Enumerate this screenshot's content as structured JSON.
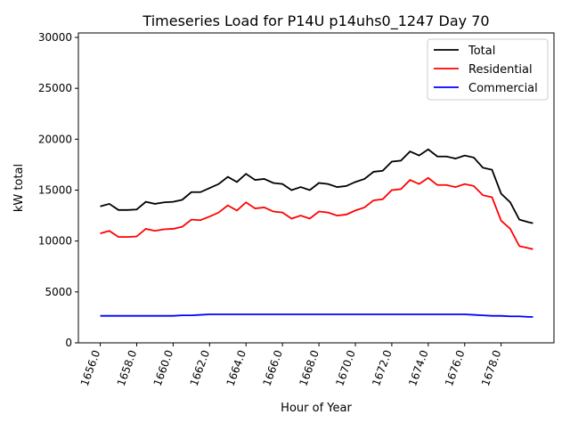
{
  "chart_data": {
    "type": "line",
    "title": "Timeseries Load for P14U p14uhs0_1247  Day 70",
    "xlabel": "Hour of Year",
    "ylabel": "kW total",
    "xlim": [
      1654.8,
      1680.9
    ],
    "ylim": [
      0,
      30000
    ],
    "xticks": [
      1656,
      1658,
      1660,
      1662,
      1664,
      1666,
      1668,
      1670,
      1672,
      1674,
      1676,
      1678
    ],
    "xtick_labels": [
      "1656.0",
      "1658.0",
      "1660.0",
      "1662.0",
      "1664.0",
      "1666.0",
      "1668.0",
      "1670.0",
      "1672.0",
      "1674.0",
      "1676.0",
      "1678.0"
    ],
    "yticks": [
      0,
      5000,
      10000,
      15000,
      20000,
      25000,
      30000
    ],
    "ytick_labels": [
      "0",
      "5000",
      "10000",
      "15000",
      "20000",
      "25000",
      "30000"
    ],
    "legend_position": "top-right",
    "x": [
      1656,
      1656.5,
      1657,
      1657.5,
      1658,
      1658.5,
      1659,
      1659.5,
      1660,
      1660.5,
      1661,
      1661.5,
      1662,
      1662.5,
      1663,
      1663.5,
      1664,
      1664.5,
      1665,
      1665.5,
      1666,
      1666.5,
      1667,
      1667.5,
      1668,
      1668.5,
      1669,
      1669.5,
      1670,
      1670.5,
      1671,
      1671.5,
      1672,
      1672.5,
      1673,
      1673.5,
      1674,
      1674.5,
      1675,
      1675.5,
      1676,
      1676.5,
      1677,
      1677.5,
      1678,
      1678.5,
      1679,
      1679.5,
      1679.75
    ],
    "series": [
      {
        "name": "Total",
        "color": "#000000",
        "values": [
          13400,
          13650,
          13050,
          13050,
          13100,
          13850,
          13650,
          13800,
          13850,
          14050,
          14800,
          14800,
          15200,
          15600,
          16300,
          15800,
          16600,
          16000,
          16100,
          15700,
          15600,
          15000,
          15300,
          15000,
          15700,
          15600,
          15300,
          15400,
          15800,
          16100,
          16800,
          16900,
          17800,
          17900,
          18800,
          18400,
          19000,
          18300,
          18300,
          18100,
          18400,
          18200,
          17200,
          17000,
          14650,
          13800,
          12100,
          11850,
          11750
        ]
      },
      {
        "name": "Residential",
        "color": "#ff0000",
        "values": [
          10750,
          11000,
          10400,
          10400,
          10450,
          11200,
          11000,
          11150,
          11200,
          11400,
          12100,
          12050,
          12400,
          12800,
          13500,
          13000,
          13800,
          13200,
          13300,
          12900,
          12800,
          12200,
          12500,
          12200,
          12900,
          12800,
          12500,
          12600,
          13000,
          13300,
          14000,
          14100,
          15000,
          15100,
          16000,
          15600,
          16200,
          15500,
          15500,
          15300,
          15600,
          15400,
          14500,
          14300,
          12000,
          11200,
          9500,
          9300,
          9200
        ]
      },
      {
        "name": "Commercial",
        "color": "#0000ff",
        "values": [
          2650,
          2650,
          2650,
          2650,
          2650,
          2650,
          2650,
          2650,
          2650,
          2700,
          2700,
          2750,
          2800,
          2800,
          2800,
          2800,
          2800,
          2800,
          2800,
          2800,
          2800,
          2800,
          2800,
          2800,
          2800,
          2800,
          2800,
          2800,
          2800,
          2800,
          2800,
          2800,
          2800,
          2800,
          2800,
          2800,
          2800,
          2800,
          2800,
          2800,
          2800,
          2750,
          2700,
          2650,
          2650,
          2600,
          2600,
          2550,
          2550
        ]
      }
    ]
  }
}
